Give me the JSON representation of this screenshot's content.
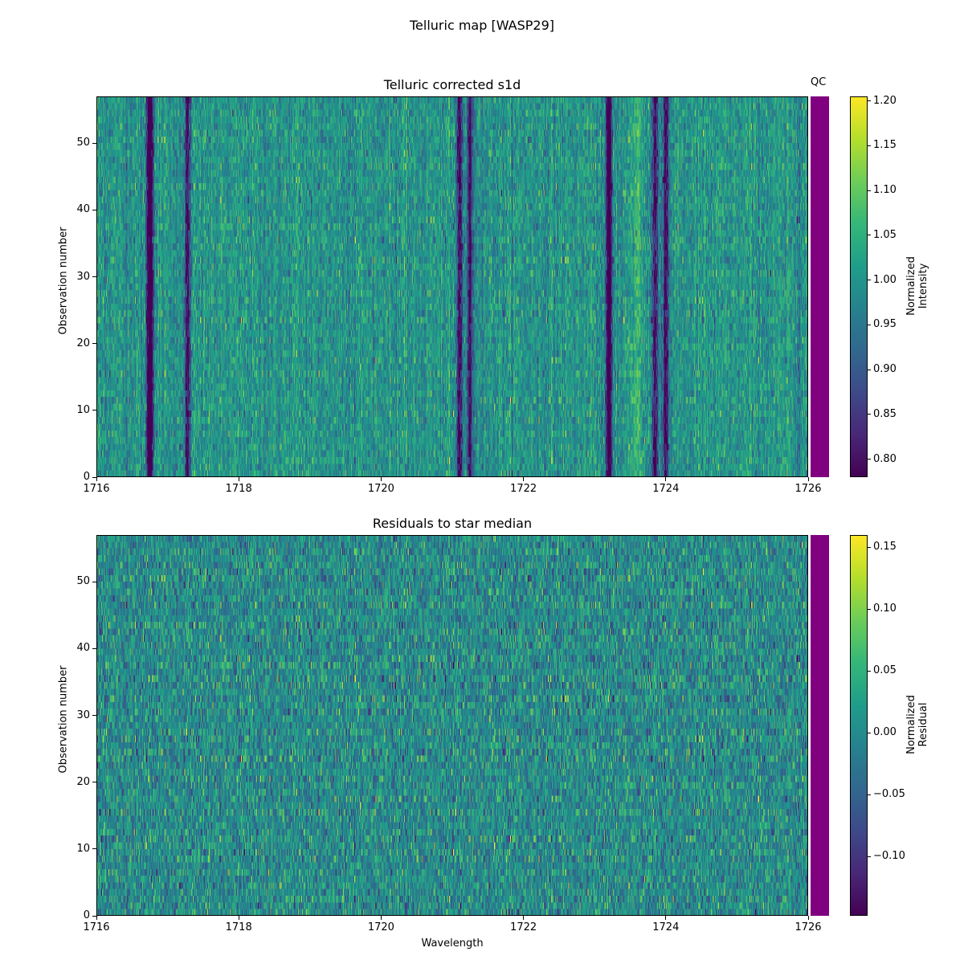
{
  "figure_title": "Telluric map [WASP29]",
  "colors": {
    "qc_bar": "#800080",
    "colormap": "viridis"
  },
  "chart_data": [
    {
      "type": "heatmap",
      "title": "Telluric corrected s1d",
      "xlabel": "",
      "ylabel": "Observation number",
      "xlim": [
        1716,
        1726
      ],
      "ylim": [
        0,
        57
      ],
      "xticks": [
        "1716",
        "1718",
        "1720",
        "1722",
        "1724",
        "1726"
      ],
      "yticks": [
        "0",
        "10",
        "20",
        "30",
        "40",
        "50"
      ],
      "colorbar": {
        "label": "Normalized\nIntensity",
        "range": [
          0.78,
          1.205
        ],
        "ticks": [
          "0.80",
          "0.85",
          "0.90",
          "0.95",
          "1.00",
          "1.05",
          "1.10",
          "1.15",
          "1.20"
        ]
      },
      "qc_label": "QC",
      "absorption_lines": [
        1716.75,
        1717.28,
        1721.1,
        1721.25,
        1723.2,
        1723.85,
        1724.0
      ],
      "bright_features": [
        1723.6
      ]
    },
    {
      "type": "heatmap",
      "title": "Residuals to star median",
      "xlabel": "Wavelength",
      "ylabel": "Observation number",
      "xlim": [
        1716,
        1726
      ],
      "ylim": [
        0,
        57
      ],
      "xticks": [
        "1716",
        "1718",
        "1720",
        "1722",
        "1724",
        "1726"
      ],
      "yticks": [
        "0",
        "10",
        "20",
        "30",
        "40",
        "50"
      ],
      "colorbar": {
        "label": "Normalized\nResidual",
        "range": [
          -0.148,
          0.16
        ],
        "ticks": [
          "−0.10",
          "−0.05",
          "0.00",
          "0.05",
          "0.10",
          "0.15"
        ]
      }
    }
  ]
}
